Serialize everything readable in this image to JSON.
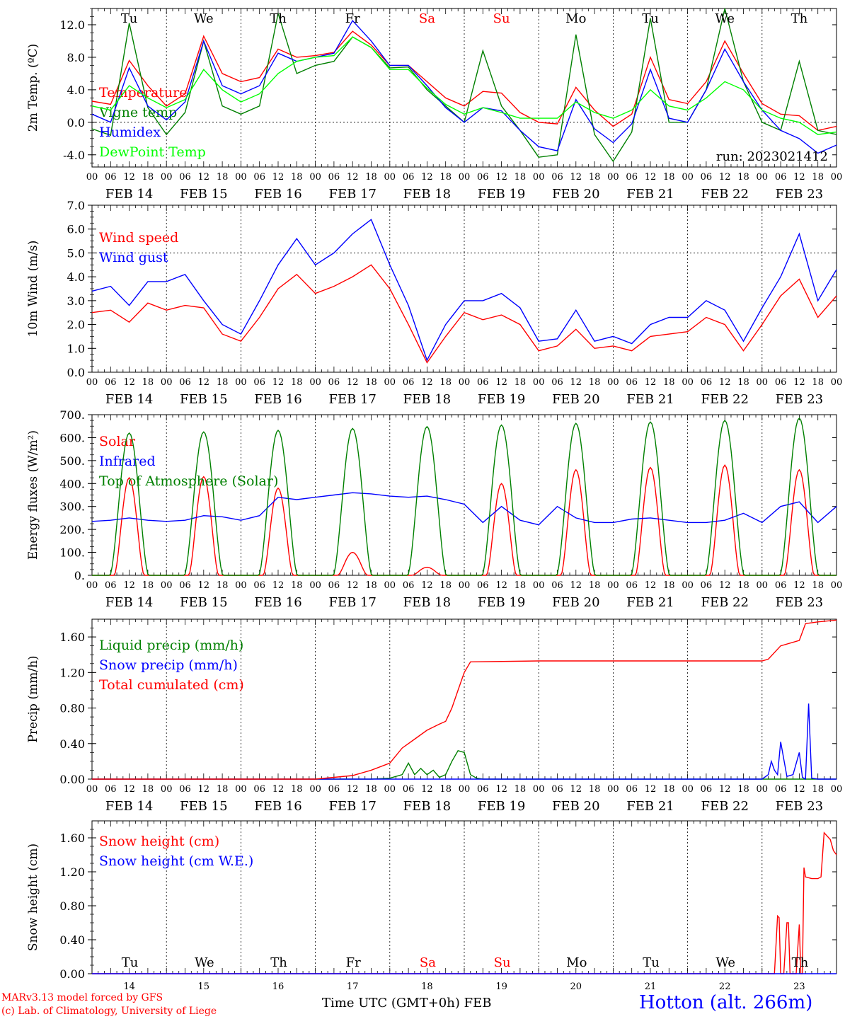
{
  "run_label": "run: 2023021412",
  "station": "Hotton (alt. 266m)",
  "footer": {
    "model": "MARv3.13 model forced by GFS",
    "credit": "(c) Lab. of Climatology, University of Liege",
    "time_axis": "Time UTC (GMT+0h)",
    "month": "FEB"
  },
  "colors": {
    "red": "#ff0000",
    "dark_green": "#008000",
    "blue": "#0000ff",
    "light_green": "#00ff00",
    "weekend": "#ff0000",
    "weekday": "#000000"
  },
  "day_names": [
    "Tu",
    "We",
    "Th",
    "Fr",
    "Sa",
    "Su",
    "Mo",
    "Tu",
    "We",
    "Th"
  ],
  "day_name_colors": [
    "weekday",
    "weekday",
    "weekday",
    "weekday",
    "weekend",
    "weekend",
    "weekday",
    "weekday",
    "weekday",
    "weekday"
  ],
  "date_labels": [
    "FEB 14",
    "FEB 15",
    "FEB 16",
    "FEB 17",
    "FEB 18",
    "FEB 19",
    "FEB 20",
    "FEB 21",
    "FEB 22",
    "FEB 23"
  ],
  "day_numbers": [
    "14",
    "15",
    "16",
    "17",
    "18",
    "19",
    "20",
    "21",
    "22",
    "23"
  ],
  "hour_ticks": [
    "00",
    "06",
    "12",
    "18"
  ],
  "chart_data": [
    {
      "type": "line",
      "ylabel": "2m Temp. (ºC)",
      "ylim": [
        -5.5,
        14
      ],
      "yticks": [
        -4.0,
        0.0,
        4.0,
        8.0,
        12.0
      ],
      "ytick_labels": [
        "-4.0",
        "0.0",
        "4.0",
        "8.0",
        "12.0"
      ],
      "dashed_ref": 0,
      "x_unit": "hours since FEB 14 00 UTC",
      "xlim": [
        0,
        240
      ],
      "series": [
        {
          "name": "Temperature",
          "color": "red",
          "x": [
            0,
            6,
            12,
            18,
            24,
            30,
            36,
            42,
            48,
            54,
            60,
            66,
            72,
            78,
            84,
            90,
            96,
            102,
            108,
            114,
            120,
            126,
            132,
            138,
            144,
            150,
            156,
            162,
            168,
            174,
            180,
            186,
            192,
            198,
            204,
            210,
            216,
            222,
            228,
            234,
            240
          ],
          "y": [
            2.6,
            2.2,
            7.6,
            4.5,
            2.0,
            3.5,
            10.6,
            6.0,
            5.0,
            5.5,
            9.0,
            8.0,
            8.2,
            8.6,
            11.2,
            9.5,
            7.0,
            7.0,
            5.0,
            3.0,
            2.0,
            3.8,
            3.6,
            1.2,
            0.0,
            -0.2,
            4.3,
            1.5,
            -0.5,
            1.0,
            8.0,
            2.8,
            2.3,
            5.0,
            10.0,
            6.0,
            2.3,
            1.0,
            0.8,
            -1.0,
            -0.5
          ]
        },
        {
          "name": "Vigne temp",
          "color": "dark_green",
          "x": [
            0,
            6,
            12,
            18,
            24,
            30,
            36,
            42,
            48,
            54,
            60,
            66,
            72,
            78,
            84,
            90,
            96,
            102,
            108,
            114,
            120,
            126,
            132,
            138,
            144,
            150,
            156,
            162,
            168,
            174,
            180,
            186,
            192,
            198,
            204,
            210,
            216,
            222,
            228,
            234,
            240
          ],
          "y": [
            -0.8,
            -1.6,
            12.2,
            1.8,
            -1.5,
            1.2,
            10.0,
            2.0,
            1.0,
            2.0,
            13.4,
            6.0,
            7.0,
            7.5,
            10.5,
            9.2,
            6.7,
            6.8,
            4.0,
            2.0,
            0.0,
            8.8,
            2.0,
            -1.0,
            -4.3,
            -4.0,
            10.8,
            -1.5,
            -4.8,
            -1.2,
            12.8,
            0.0,
            0.0,
            4.0,
            14.0,
            5.0,
            0.0,
            -1.0,
            7.5,
            -1.0,
            -1.5
          ]
        },
        {
          "name": "Humidex",
          "color": "blue",
          "x": [
            0,
            6,
            12,
            18,
            24,
            30,
            36,
            42,
            48,
            54,
            60,
            66,
            72,
            78,
            84,
            90,
            96,
            102,
            108,
            114,
            120,
            126,
            132,
            138,
            144,
            150,
            156,
            162,
            168,
            174,
            180,
            186,
            192,
            198,
            204,
            210,
            216,
            222,
            228,
            234,
            240
          ],
          "y": [
            1.0,
            0.0,
            6.7,
            2.0,
            0.3,
            2.5,
            10.0,
            4.5,
            3.5,
            4.5,
            8.5,
            7.5,
            8.0,
            8.5,
            12.5,
            10.0,
            7.0,
            7.0,
            4.5,
            1.8,
            0.0,
            1.8,
            1.4,
            -1.0,
            -3.0,
            -3.5,
            2.8,
            -0.8,
            -2.5,
            -0.2,
            6.5,
            0.5,
            0.0,
            4.0,
            9.0,
            5.0,
            1.5,
            -1.0,
            -2.0,
            -3.8,
            -2.8
          ]
        },
        {
          "name": "DewPoint Temp",
          "color": "light_green",
          "x": [
            0,
            6,
            12,
            18,
            24,
            30,
            36,
            42,
            48,
            54,
            60,
            66,
            72,
            78,
            84,
            90,
            96,
            102,
            108,
            114,
            120,
            126,
            132,
            138,
            144,
            150,
            156,
            162,
            168,
            174,
            180,
            186,
            192,
            198,
            204,
            210,
            216,
            222,
            228,
            234,
            240
          ],
          "y": [
            2.0,
            1.5,
            4.5,
            3.0,
            1.8,
            2.8,
            6.5,
            4.0,
            2.5,
            3.5,
            6.0,
            7.5,
            8.0,
            8.2,
            10.5,
            9.2,
            6.5,
            6.5,
            4.2,
            2.2,
            1.0,
            1.8,
            1.2,
            0.5,
            0.5,
            0.5,
            2.5,
            1.2,
            0.5,
            1.5,
            4.0,
            2.0,
            1.5,
            3.0,
            5.0,
            4.0,
            1.5,
            0.5,
            0.0,
            -1.5,
            -1.2
          ]
        }
      ]
    },
    {
      "type": "line",
      "ylabel": "10m Wind (m/s)",
      "ylim": [
        0,
        7
      ],
      "yticks": [
        0,
        1,
        2,
        3,
        4,
        5,
        6,
        7
      ],
      "ytick_labels": [
        "0.0",
        "1.0",
        "2.0",
        "3.0",
        "4.0",
        "5.0",
        "6.0",
        "7.0"
      ],
      "dashed_ref": 5,
      "x_unit": "hours since FEB 14 00 UTC",
      "xlim": [
        0,
        240
      ],
      "series": [
        {
          "name": "Wind speed",
          "color": "red",
          "x": [
            0,
            6,
            12,
            18,
            24,
            30,
            36,
            42,
            48,
            54,
            60,
            66,
            72,
            78,
            84,
            90,
            96,
            102,
            108,
            114,
            120,
            126,
            132,
            138,
            144,
            150,
            156,
            162,
            168,
            174,
            180,
            186,
            192,
            198,
            204,
            210,
            216,
            222,
            228,
            234,
            240
          ],
          "y": [
            2.5,
            2.6,
            2.1,
            2.9,
            2.6,
            2.8,
            2.7,
            1.6,
            1.3,
            2.3,
            3.5,
            4.1,
            3.3,
            3.6,
            4.0,
            4.5,
            3.5,
            2.0,
            0.4,
            1.5,
            2.5,
            2.2,
            2.4,
            2.0,
            0.9,
            1.1,
            1.8,
            1.0,
            1.1,
            0.9,
            1.5,
            1.6,
            1.7,
            2.3,
            2.0,
            0.9,
            2.0,
            3.2,
            3.9,
            2.3,
            3.2
          ]
        },
        {
          "name": "Wind gust",
          "color": "blue",
          "x": [
            0,
            6,
            12,
            18,
            24,
            30,
            36,
            42,
            48,
            54,
            60,
            66,
            72,
            78,
            84,
            90,
            96,
            102,
            108,
            114,
            120,
            126,
            132,
            138,
            144,
            150,
            156,
            162,
            168,
            174,
            180,
            186,
            192,
            198,
            204,
            210,
            216,
            222,
            228,
            234,
            240
          ],
          "y": [
            3.4,
            3.6,
            2.8,
            3.8,
            3.8,
            4.1,
            3.0,
            2.0,
            1.6,
            3.0,
            4.5,
            5.6,
            4.5,
            5.0,
            5.8,
            6.4,
            4.5,
            2.8,
            0.5,
            2.0,
            3.0,
            3.0,
            3.3,
            2.7,
            1.3,
            1.4,
            2.6,
            1.3,
            1.5,
            1.2,
            2.0,
            2.3,
            2.3,
            3.0,
            2.6,
            1.3,
            2.7,
            4.0,
            5.8,
            3.0,
            4.3
          ]
        }
      ]
    },
    {
      "type": "line",
      "ylabel": "Energy fluxes (W/m²)",
      "ylim": [
        0,
        700
      ],
      "yticks": [
        0,
        100,
        200,
        300,
        400,
        500,
        600,
        700
      ],
      "ytick_labels": [
        "0.",
        "100.",
        "200.",
        "300.",
        "400.",
        "500.",
        "600.",
        "700."
      ],
      "x_unit": "hours since FEB 14 00 UTC",
      "xlim": [
        0,
        240
      ],
      "diurnal_peaks": {
        "top_of_atmosphere": [
          620,
          625,
          632,
          640,
          648,
          655,
          662,
          668,
          675,
          685
        ],
        "solar": [
          425,
          430,
          380,
          100,
          35,
          400,
          460,
          470,
          480,
          460
        ]
      },
      "series": [
        {
          "name": "Solar",
          "color": "red"
        },
        {
          "name": "Infrared",
          "color": "blue",
          "x": [
            0,
            6,
            12,
            18,
            24,
            30,
            36,
            42,
            48,
            54,
            60,
            66,
            72,
            78,
            84,
            90,
            96,
            102,
            108,
            114,
            120,
            126,
            132,
            138,
            144,
            150,
            156,
            162,
            168,
            174,
            180,
            186,
            192,
            198,
            204,
            210,
            216,
            222,
            228,
            234,
            240
          ],
          "y": [
            235,
            240,
            250,
            240,
            235,
            240,
            260,
            255,
            240,
            260,
            340,
            330,
            340,
            350,
            360,
            355,
            345,
            340,
            345,
            330,
            310,
            230,
            300,
            240,
            220,
            300,
            250,
            230,
            230,
            245,
            250,
            240,
            230,
            230,
            240,
            270,
            230,
            300,
            320,
            230,
            300
          ]
        },
        {
          "name": "Top of Atmosphere (Solar)",
          "color": "dark_green"
        }
      ]
    },
    {
      "type": "line",
      "ylabel": "Precip (mm/h)",
      "ylim": [
        0,
        1.8
      ],
      "yticks": [
        0,
        0.4,
        0.8,
        1.2,
        1.6
      ],
      "ytick_labels": [
        "0.00",
        "0.40",
        "0.80",
        "1.20",
        "1.60"
      ],
      "x_unit": "hours since FEB 14 00 UTC",
      "xlim": [
        0,
        240
      ],
      "series": [
        {
          "name": "Liquid precip (mm/h)",
          "color": "dark_green",
          "x": [
            0,
            80,
            90,
            96,
            100,
            102,
            104,
            106,
            108,
            110,
            112,
            114,
            116,
            118,
            120,
            122,
            124,
            126,
            240
          ],
          "y": [
            0,
            0,
            0,
            0.01,
            0.05,
            0.18,
            0.05,
            0.12,
            0.05,
            0.1,
            0.02,
            0.05,
            0.2,
            0.32,
            0.3,
            0.05,
            0.01,
            0,
            0
          ]
        },
        {
          "name": "Snow precip (mm/h)",
          "color": "blue",
          "x": [
            0,
            216,
            218,
            219,
            220,
            221,
            222,
            224,
            226,
            228,
            229,
            230,
            231,
            232,
            234,
            240
          ],
          "y": [
            0,
            0,
            0.05,
            0.2,
            0.1,
            0.05,
            0.42,
            0.03,
            0.05,
            0.3,
            0.02,
            0,
            0.85,
            0.01,
            0,
            0
          ]
        },
        {
          "name": "Total cumulated (cm)",
          "color": "red",
          "x": [
            0,
            72,
            78,
            84,
            90,
            96,
            100,
            104,
            108,
            112,
            114,
            116,
            118,
            120,
            122,
            144,
            168,
            192,
            210,
            216,
            218,
            222,
            228,
            230,
            234,
            240
          ],
          "y": [
            0,
            0,
            0.02,
            0.04,
            0.1,
            0.18,
            0.35,
            0.45,
            0.55,
            0.62,
            0.65,
            0.8,
            1.0,
            1.2,
            1.32,
            1.33,
            1.33,
            1.33,
            1.33,
            1.33,
            1.35,
            1.5,
            1.56,
            1.75,
            1.77,
            1.79
          ]
        }
      ]
    },
    {
      "type": "line",
      "ylabel": "Snow height (cm)",
      "ylim": [
        0,
        1.8
      ],
      "yticks": [
        0,
        0.4,
        0.8,
        1.2,
        1.6
      ],
      "ytick_labels": [
        "0.00",
        "0.40",
        "0.80",
        "1.20",
        "1.60"
      ],
      "x_unit": "hours since FEB 14 00 UTC",
      "xlim": [
        0,
        240
      ],
      "series": [
        {
          "name": "Snow height (cm)",
          "color": "red",
          "x": [
            0,
            220,
            221,
            221.5,
            222,
            223,
            224,
            224.5,
            225,
            227,
            228,
            228.5,
            229,
            229.5,
            230,
            232,
            234,
            235,
            236,
            238,
            239,
            240
          ],
          "y": [
            0,
            0,
            0.68,
            0.66,
            0,
            0,
            0.6,
            0.6,
            0,
            0,
            0.58,
            0,
            0,
            1.25,
            1.14,
            1.12,
            1.12,
            1.14,
            1.66,
            1.58,
            1.45,
            1.4
          ]
        },
        {
          "name": "Snow height (cm W.E.)",
          "color": "blue",
          "x": [
            0,
            240
          ],
          "y": [
            0,
            0
          ]
        }
      ]
    }
  ]
}
